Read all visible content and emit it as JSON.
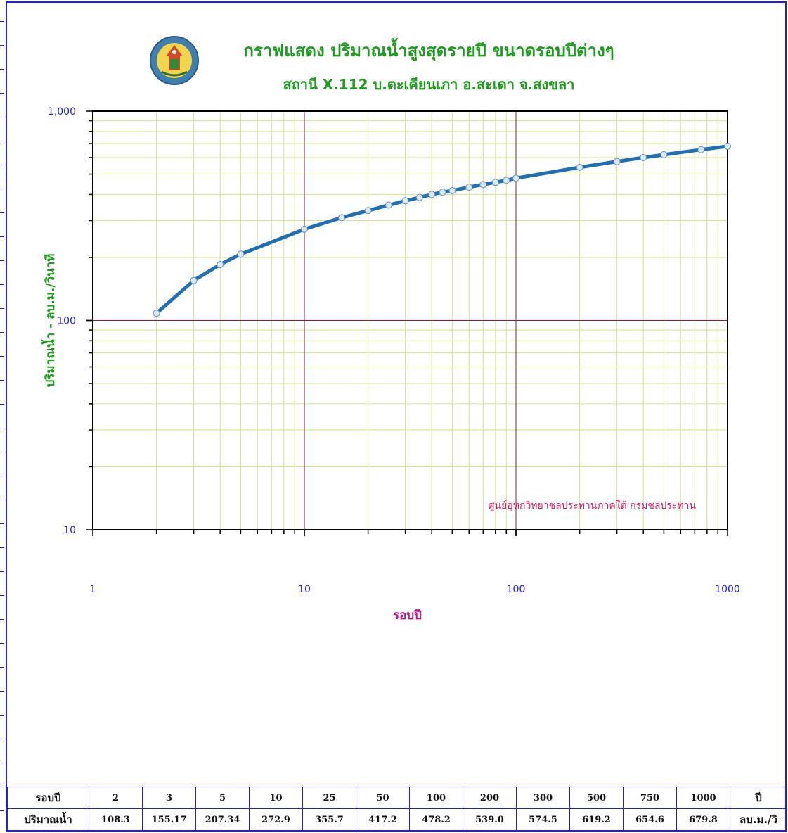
{
  "chart_data": {
    "type": "line",
    "title": "กราฟแสดง ปริมาณน้ำสูงสุดรายปี ขนาดรอบปีต่างๆ",
    "subtitle": "สถานี X.112  บ.ตะเคียนเภา  อ.สะเดา  จ.สงขลา",
    "xlabel": "รอบปี",
    "ylabel": "ปริมาณน้ำ  -  ลบ.ม./วินาที",
    "x_scale": "log",
    "y_scale": "log",
    "xlim": [
      1,
      1000
    ],
    "ylim": [
      10,
      1000
    ],
    "x_tick_labels": [
      "1",
      "10",
      "100",
      "1000"
    ],
    "y_tick_labels": [
      "10",
      "100",
      "1,000"
    ],
    "grid": true,
    "annotation": "ศูนย์อุทกวิทยาชลประทานภาคใต้  กรมชลประทาน",
    "series": [
      {
        "x": [
          2,
          3,
          4,
          5,
          10,
          15,
          20,
          25,
          30,
          35,
          40,
          45,
          50,
          60,
          70,
          80,
          90,
          100,
          200,
          300,
          400,
          500,
          750,
          1000
        ],
        "y": [
          108.3,
          155.17,
          185,
          207.34,
          272.9,
          310,
          335,
          355.7,
          373,
          387,
          400,
          410,
          417.2,
          433,
          446,
          457,
          467,
          478.2,
          539.0,
          574.5,
          600,
          619.2,
          654.6,
          679.8
        ]
      }
    ],
    "colors": {
      "line": "#1f6fb4",
      "marker_fill": "#dbe8f5",
      "marker_stroke": "#5f8fbf",
      "minor_grid": "#d6e08a",
      "major_grid": "#8b1a3a",
      "axis_label": "#1c9b1c",
      "tick_label": "#1a1adb",
      "annotation": "#e0185e",
      "xlabel": "#c0168a"
    }
  },
  "summary_table": {
    "row1_label": "รอบปี",
    "row1_values": [
      "2",
      "3",
      "5",
      "10",
      "25",
      "50",
      "100",
      "200",
      "300",
      "500",
      "750",
      "1000"
    ],
    "row1_unit": "ปี",
    "row2_label": "ปริมาณน้ำ",
    "row2_values": [
      "108.3",
      "155.17",
      "207.34",
      "272.9",
      "355.7",
      "417.2",
      "478.2",
      "539.0",
      "574.5",
      "619.2",
      "654.6",
      "679.8"
    ],
    "row2_unit": "ลบ.ม./วิ"
  }
}
